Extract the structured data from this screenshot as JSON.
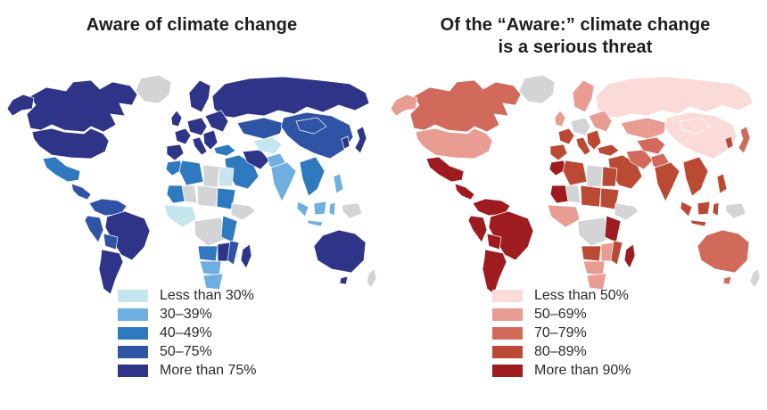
{
  "page": {
    "background": "#ffffff"
  },
  "chart_data": [
    {
      "type": "choropleth",
      "title": "Aware of climate change",
      "title_lines": [
        "Aware of climate change",
        ""
      ],
      "legend": [
        {
          "label": "Less than 30%",
          "color": "#C5E5EF"
        },
        {
          "label": "30–39%",
          "color": "#6FAFDF"
        },
        {
          "label": "40–49%",
          "color": "#2F79BF"
        },
        {
          "label": "50–75%",
          "color": "#3054A5"
        },
        {
          "label": "More than 75%",
          "color": "#2E3589"
        }
      ],
      "legend_position": "bottom-left",
      "no_data_color": "#D3D4D6",
      "region_categories": {
        "alaska": 5,
        "canada": 5,
        "greenland": 0,
        "usa": 5,
        "mexico": 3,
        "central_america": 4,
        "colombia_venezuela": 4,
        "peru_ecuador": 4,
        "brazil": 5,
        "bolivia": 4,
        "argentina_chile": 5,
        "uk": 5,
        "scandinavia": 5,
        "france": 5,
        "iberia": 5,
        "central_europe": 5,
        "italy": 5,
        "balkans": 5,
        "eastern_europe": 5,
        "russia": 5,
        "turkey": 3,
        "middle_east": 3,
        "iran": 5,
        "kazakhstan": 4,
        "central_asia": 1,
        "pakistan": 2,
        "china": 4,
        "mongolia": 4,
        "india": 2,
        "se_asia": 3,
        "korea": 5,
        "japan": 5,
        "philippines": 2,
        "indonesia_sumatra": 2,
        "indonesia_borneo": 2,
        "indonesia_sulawesi": 2,
        "indonesia_java": 2,
        "new_guinea": 0,
        "morocco": 3,
        "algeria": 3,
        "libya": 0,
        "egypt": 1,
        "mauritania": 3,
        "mali": 0,
        "niger_chad": 0,
        "sudan": 3,
        "west_africa": 1,
        "ethiopia": 0,
        "central_africa": 0,
        "kenya_tanzania": 3,
        "angola": 3,
        "zambia_zimbabwe": 5,
        "mozambique": 4,
        "namibia_botswana": 2,
        "south_africa": 2,
        "madagascar": 5,
        "australia": 5,
        "tasmania": 5,
        "new_zealand": 0
      }
    },
    {
      "type": "choropleth",
      "title": "Of the “Aware:” climate change is a serious threat",
      "title_lines": [
        "Of the “Aware:” climate change",
        "is a serious threat"
      ],
      "legend": [
        {
          "label": "Less than 50%",
          "color": "#FADBDA"
        },
        {
          "label": "50–69%",
          "color": "#E89C92"
        },
        {
          "label": "70–79%",
          "color": "#D26A5C"
        },
        {
          "label": "80–89%",
          "color": "#BB4A34"
        },
        {
          "label": "More than 90%",
          "color": "#9E1B20"
        }
      ],
      "legend_position": "bottom-left",
      "no_data_color": "#D3D4D6",
      "region_categories": {
        "alaska": 2,
        "canada": 3,
        "greenland": 0,
        "usa": 2,
        "mexico": 5,
        "central_america": 5,
        "colombia_venezuela": 5,
        "peru_ecuador": 5,
        "brazil": 5,
        "bolivia": 5,
        "argentina_chile": 5,
        "uk": 2,
        "scandinavia": 2,
        "france": 4,
        "iberia": 4,
        "central_europe": 0,
        "italy": 4,
        "balkans": 4,
        "eastern_europe": 2,
        "russia": 1,
        "turkey": 4,
        "middle_east": 4,
        "iran": 3,
        "kazakhstan": 2,
        "central_asia": 3,
        "pakistan": 3,
        "china": 1,
        "mongolia": 1,
        "india": 4,
        "se_asia": 4,
        "korea": 4,
        "japan": 3,
        "philippines": 4,
        "indonesia_sumatra": 4,
        "indonesia_borneo": 4,
        "indonesia_sulawesi": 4,
        "indonesia_java": 4,
        "new_guinea": 0,
        "morocco": 5,
        "algeria": 4,
        "libya": 0,
        "egypt": 4,
        "mauritania": 5,
        "mali": 0,
        "niger_chad": 4,
        "sudan": 4,
        "west_africa": 2,
        "ethiopia": 0,
        "central_africa": 0,
        "kenya_tanzania": 5,
        "angola": 4,
        "zambia_zimbabwe": 2,
        "mozambique": 4,
        "namibia_botswana": 2,
        "south_africa": 2,
        "madagascar": 5,
        "australia": 3,
        "tasmania": 3,
        "new_zealand": 0
      }
    }
  ]
}
